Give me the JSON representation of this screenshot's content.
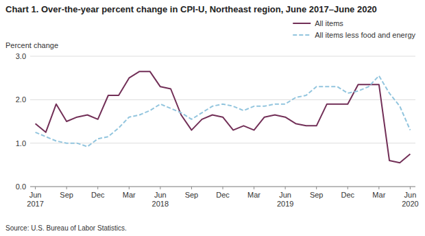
{
  "chart_data": {
    "type": "line",
    "title": "Chart 1. Over-the-year percent change in CPI-U, Northeast region, June 2017–June 2020",
    "y_label": "Percent change",
    "source": "Source: U.S. Bureau of Labor Statistics.",
    "categories": [
      "Jun\n2017",
      null,
      null,
      "Sep",
      null,
      null,
      "Dec",
      null,
      null,
      "Mar",
      null,
      null,
      "Jun\n2018",
      null,
      null,
      "Sep",
      null,
      null,
      "Dec",
      null,
      null,
      "Mar",
      null,
      null,
      "Jun\n2019",
      null,
      null,
      "Sep",
      null,
      null,
      "Dec",
      null,
      null,
      "Mar",
      null,
      null,
      "Jun\n2020"
    ],
    "series": [
      {
        "name": "All items",
        "color": "#722F57",
        "line_style": "solid",
        "values": [
          1.45,
          1.25,
          1.9,
          1.5,
          1.6,
          1.65,
          1.55,
          2.1,
          2.1,
          2.5,
          2.65,
          2.65,
          2.3,
          2.25,
          1.65,
          1.3,
          1.55,
          1.65,
          1.6,
          1.3,
          1.4,
          1.3,
          1.6,
          1.65,
          1.6,
          1.45,
          1.4,
          1.4,
          1.9,
          1.9,
          1.9,
          2.35,
          2.35,
          2.35,
          0.6,
          0.55,
          0.75
        ]
      },
      {
        "name": "All items less food and energy",
        "color": "#92C5DE",
        "line_style": "dashed",
        "values": [
          1.25,
          1.15,
          1.05,
          1.0,
          1.0,
          0.92,
          1.1,
          1.15,
          1.35,
          1.6,
          1.65,
          1.75,
          1.9,
          1.8,
          1.7,
          1.55,
          1.7,
          1.85,
          1.9,
          1.85,
          1.75,
          1.85,
          1.85,
          1.9,
          1.9,
          2.05,
          2.1,
          2.3,
          2.3,
          2.3,
          2.15,
          2.2,
          2.3,
          2.55,
          2.15,
          1.85,
          1.3
        ]
      }
    ],
    "ylim": [
      0.0,
      3.0
    ],
    "yticks": [
      {
        "value": 0.0,
        "label": "0.0"
      },
      {
        "value": 1.0,
        "label": "1.0"
      },
      {
        "value": 2.0,
        "label": "2.0"
      },
      {
        "value": 3.0,
        "label": "3.0"
      }
    ],
    "grid": true,
    "legend": "upper right"
  }
}
